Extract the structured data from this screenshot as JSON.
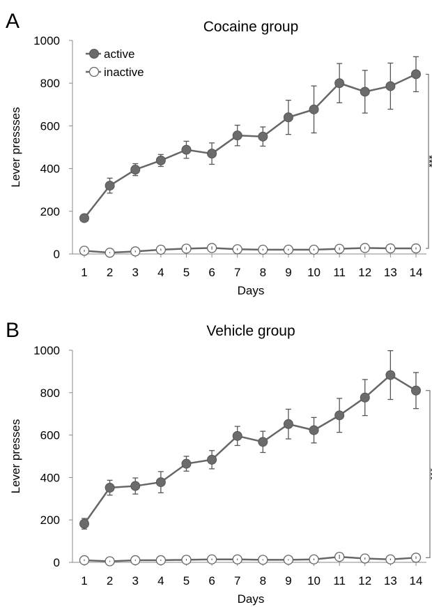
{
  "colors": {
    "series": "#666666",
    "filled_marker": "#6b6b6b",
    "open_marker_fill": "#ffffff",
    "axis": "#888888"
  },
  "chart_data": [
    {
      "panel_letter": "A",
      "type": "line",
      "title": "Cocaine group",
      "xlabel": "Days",
      "ylabel": "Lever pressses",
      "x": [
        1,
        2,
        3,
        4,
        5,
        6,
        7,
        8,
        9,
        10,
        11,
        12,
        13,
        14
      ],
      "ylim": [
        0,
        1000
      ],
      "yticks": [
        0,
        200,
        400,
        600,
        800,
        1000
      ],
      "legend": {
        "placement": "top-left",
        "entries": [
          "active",
          "inactive"
        ]
      },
      "series": [
        {
          "name": "active",
          "marker": "filled-circle",
          "values": [
            168,
            320,
            395,
            438,
            488,
            470,
            555,
            550,
            640,
            677,
            800,
            760,
            786,
            842
          ],
          "errors": [
            10,
            35,
            28,
            28,
            40,
            50,
            48,
            45,
            80,
            110,
            92,
            100,
            108,
            82
          ]
        },
        {
          "name": "inactive",
          "marker": "open-circle",
          "values": [
            15,
            6,
            12,
            20,
            25,
            28,
            22,
            20,
            20,
            20,
            24,
            28,
            26,
            26
          ],
          "errors": [
            5,
            3,
            4,
            5,
            6,
            8,
            5,
            4,
            4,
            4,
            6,
            6,
            5,
            5
          ]
        }
      ],
      "significance": "***"
    },
    {
      "panel_letter": "B",
      "type": "line",
      "title": "Vehicle group",
      "xlabel": "Days",
      "ylabel": "Lever presses",
      "x": [
        1,
        2,
        3,
        4,
        5,
        6,
        7,
        8,
        9,
        10,
        11,
        12,
        13,
        14
      ],
      "ylim": [
        0,
        1000
      ],
      "yticks": [
        0,
        200,
        400,
        600,
        800,
        1000
      ],
      "series": [
        {
          "name": "active",
          "marker": "filled-circle",
          "values": [
            182,
            352,
            360,
            378,
            465,
            484,
            596,
            568,
            652,
            623,
            693,
            777,
            883,
            810
          ],
          "errors": [
            25,
            35,
            38,
            50,
            35,
            43,
            45,
            50,
            70,
            60,
            80,
            85,
            115,
            85
          ]
        },
        {
          "name": "inactive",
          "marker": "open-circle",
          "values": [
            10,
            5,
            10,
            10,
            12,
            14,
            14,
            12,
            12,
            14,
            26,
            18,
            14,
            22
          ],
          "errors": [
            4,
            3,
            3,
            3,
            4,
            4,
            4,
            3,
            3,
            4,
            10,
            5,
            4,
            6
          ]
        }
      ],
      "significance": "***"
    }
  ]
}
